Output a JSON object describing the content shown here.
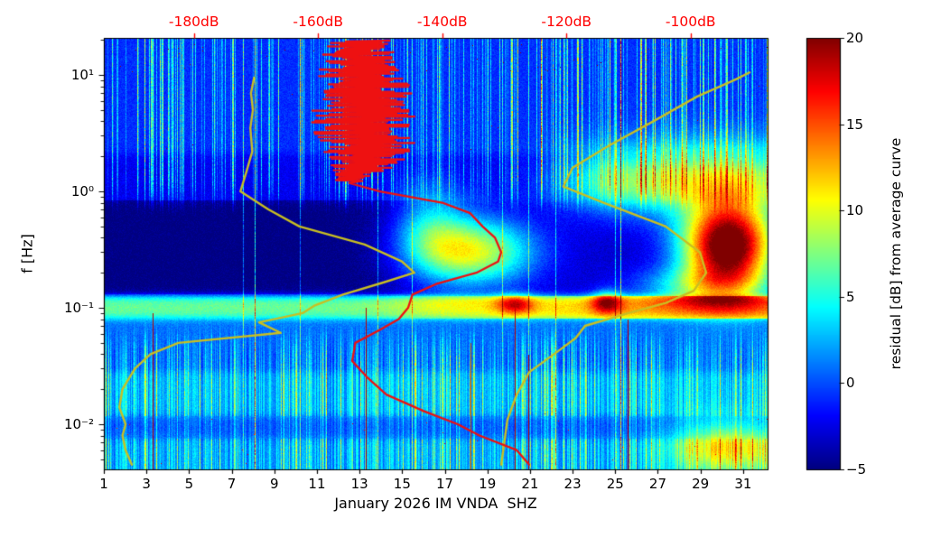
{
  "figure": {
    "colors": {
      "background": "#ffffff",
      "axis": "#000000",
      "top_axis_labels": "#ff0000",
      "curve_yellow": "#c9bf22",
      "curve_red": "#ee1111"
    }
  },
  "chart_data": {
    "type": "heatmap",
    "title": "",
    "xlabel": "January 2026 IM VNDA  SHZ",
    "ylabel": "f [Hz]",
    "x_axis": {
      "range_days": [
        1,
        32.15
      ],
      "ticks": [
        1,
        3,
        5,
        7,
        9,
        11,
        13,
        15,
        17,
        19,
        21,
        23,
        25,
        27,
        29,
        31
      ]
    },
    "y_axis": {
      "scale": "log",
      "range_hz": [
        0.0041,
        20.8
      ],
      "major_ticks": [
        {
          "f": 10,
          "label": "10¹"
        },
        {
          "f": 1,
          "label": "10⁰"
        },
        {
          "f": 0.1,
          "label": "10⁻¹"
        },
        {
          "f": 0.01,
          "label": "10⁻²"
        }
      ]
    },
    "top_axis": {
      "units": "dB",
      "range_dB": [
        -194.5,
        -87.6
      ],
      "ticks": [
        {
          "dB": -180,
          "label": "-180dB"
        },
        {
          "dB": -160,
          "label": "-160dB"
        },
        {
          "dB": -140,
          "label": "-140dB"
        },
        {
          "dB": -120,
          "label": "-120dB"
        },
        {
          "dB": -100,
          "label": "-100dB"
        }
      ]
    },
    "colorbar": {
      "label": "residual [dB] from average curve",
      "colormap": "jet",
      "range": [
        -5,
        20
      ],
      "ticks": [
        {
          "v": 20,
          "label": "20"
        },
        {
          "v": 15,
          "label": "15"
        },
        {
          "v": 10,
          "label": "10"
        },
        {
          "v": 5,
          "label": "5"
        },
        {
          "v": 0,
          "label": "0"
        },
        {
          "v": -5,
          "label": "−5"
        }
      ]
    },
    "curves": [
      {
        "name": "yellow-curve-left",
        "color": "#c9bf22",
        "points_dB_f": [
          [
            -190,
            0.0045
          ],
          [
            -191,
            0.006
          ],
          [
            -191.5,
            0.008
          ],
          [
            -191,
            0.01
          ],
          [
            -192,
            0.014
          ],
          [
            -191.5,
            0.02
          ],
          [
            -189.5,
            0.03
          ],
          [
            -187,
            0.04
          ],
          [
            -182.5,
            0.05
          ],
          [
            -166,
            0.061
          ],
          [
            -169.5,
            0.075
          ],
          [
            -162.5,
            0.09
          ],
          [
            -160.5,
            0.105
          ],
          [
            -156,
            0.13
          ],
          [
            -149.5,
            0.165
          ],
          [
            -144.5,
            0.2
          ],
          [
            -146.5,
            0.25
          ],
          [
            -152.5,
            0.35
          ],
          [
            -163,
            0.5
          ],
          [
            -168,
            0.7
          ],
          [
            -172.5,
            1.0
          ],
          [
            -171.5,
            1.5
          ],
          [
            -170.6,
            2.2
          ],
          [
            -170.9,
            3.5
          ],
          [
            -170.5,
            5.0
          ],
          [
            -170.8,
            7.0
          ],
          [
            -170.3,
            9.5
          ]
        ]
      },
      {
        "name": "yellow-curve-right",
        "color": "#c9bf22",
        "points_dB_f": [
          [
            -130.5,
            0.0045
          ],
          [
            -130,
            0.007
          ],
          [
            -129.5,
            0.011
          ],
          [
            -128,
            0.018
          ],
          [
            -126,
            0.028
          ],
          [
            -122,
            0.04
          ],
          [
            -118.5,
            0.055
          ],
          [
            -117,
            0.07
          ],
          [
            -110,
            0.09
          ],
          [
            -104,
            0.11
          ],
          [
            -99.5,
            0.14
          ],
          [
            -97.5,
            0.2
          ],
          [
            -98.5,
            0.3
          ],
          [
            -104,
            0.5
          ],
          [
            -114,
            0.8
          ],
          [
            -120.5,
            1.1
          ],
          [
            -119,
            1.6
          ],
          [
            -113,
            2.5
          ],
          [
            -106,
            4.0
          ],
          [
            -99,
            6.5
          ],
          [
            -93,
            9.0
          ],
          [
            -90.5,
            10.5
          ]
        ]
      },
      {
        "name": "red-curve",
        "color": "#ee1111",
        "points_dB_f": [
          [
            -126,
            0.0045
          ],
          [
            -128,
            0.006
          ],
          [
            -134,
            0.008
          ],
          [
            -137.5,
            0.01
          ],
          [
            -143,
            0.013
          ],
          [
            -149,
            0.018
          ],
          [
            -152,
            0.025
          ],
          [
            -154.5,
            0.035
          ],
          [
            -154,
            0.05
          ],
          [
            -150,
            0.065
          ],
          [
            -147,
            0.08
          ],
          [
            -145.5,
            0.1
          ],
          [
            -144.8,
            0.13
          ],
          [
            -141,
            0.16
          ],
          [
            -134.5,
            0.2
          ],
          [
            -131,
            0.25
          ],
          [
            -130.5,
            0.3
          ],
          [
            -131.5,
            0.4
          ],
          [
            -133.5,
            0.5
          ],
          [
            -135.5,
            0.65
          ],
          [
            -140,
            0.8
          ],
          [
            -150,
            1.0
          ],
          [
            -155,
            1.18
          ]
        ],
        "jagged_tail": {
          "lf_start": 0.09,
          "lf_end": 1.295,
          "n": 170,
          "center_dB": [
            [
              0.09,
              -155
            ],
            [
              0.3,
              -152
            ],
            [
              0.7,
              -152.5
            ],
            [
              1.0,
              -153
            ],
            [
              1.3,
              -153.5
            ]
          ],
          "amplitude_dB": [
            [
              0.09,
              2.5
            ],
            [
              0.25,
              6.5
            ],
            [
              0.5,
              9
            ],
            [
              0.8,
              8.5
            ],
            [
              1.1,
              6.5
            ],
            [
              1.3,
              5
            ]
          ]
        }
      }
    ],
    "heatmap_model": {
      "value_range": [
        -5,
        20
      ],
      "bands": [
        [
          -2.12,
          2.2
        ],
        [
          -1.93,
          0.3
        ],
        [
          -1.55,
          2.6
        ],
        [
          -1.09,
          0.8
        ],
        [
          -0.9,
          7.0
        ],
        [
          -0.1,
          -3.2
        ],
        [
          0.32,
          -2.2
        ],
        [
          9,
          -0.8
        ]
      ],
      "blobs": [
        [
          18.3,
          -0.52,
          2.0,
          0.2,
          13
        ],
        [
          16.3,
          -0.3,
          1.2,
          0.25,
          6
        ],
        [
          30.3,
          -0.47,
          1.5,
          0.26,
          26
        ],
        [
          29.2,
          -0.82,
          2.2,
          0.12,
          8
        ],
        [
          30.0,
          0.1,
          3.2,
          0.22,
          11
        ],
        [
          25.0,
          0.08,
          2.0,
          0.2,
          6
        ],
        [
          24.6,
          -0.95,
          0.5,
          0.07,
          9
        ],
        [
          20.3,
          -0.97,
          0.6,
          0.06,
          8
        ],
        [
          30.3,
          -2.2,
          1.8,
          0.16,
          9
        ]
      ],
      "quiet_region": {
        "day_end": 15.5,
        "lf0": -0.88,
        "lf1": -0.08,
        "amp": -1.8,
        "rate": 1.2
      },
      "band_boost": {
        "lf0": -1.09,
        "lf1": -0.9,
        "mid1": 15.0,
        "rate1": 0.8,
        "amp1": 3.2,
        "mid2": 22.0,
        "rate2": 0.9,
        "amp2": 2.0
      },
      "red_lines": [
        [
          3.3,
          -2.39,
          -1.05
        ],
        [
          13.3,
          -2.39,
          -1.0
        ],
        [
          18.2,
          -2.39,
          -1.3
        ],
        [
          20.3,
          -2.39,
          -0.94
        ],
        [
          20.9,
          -2.39,
          -1.4
        ],
        [
          25.6,
          -2.39,
          -1.1
        ]
      ],
      "stripes": {
        "hi_thresh": 0.7,
        "hi_amp": 9,
        "hi2_thresh": 0.86,
        "hi2_amp": 7,
        "lo_gain": 4,
        "lo_thresh": 0.78,
        "lo_amp": 7,
        "full_thresh": 0.988,
        "full_amp": 5.5,
        "full2_thresh": 0.9965,
        "full2_amp": 9
      },
      "speckle": {
        "red_lf_min": 1.02,
        "red_thresh": 0.9985,
        "mid_lf_min": 0.3,
        "mid_thresh": 0.9997,
        "value": 19.5
      },
      "noise_amp": 1.5
    }
  }
}
